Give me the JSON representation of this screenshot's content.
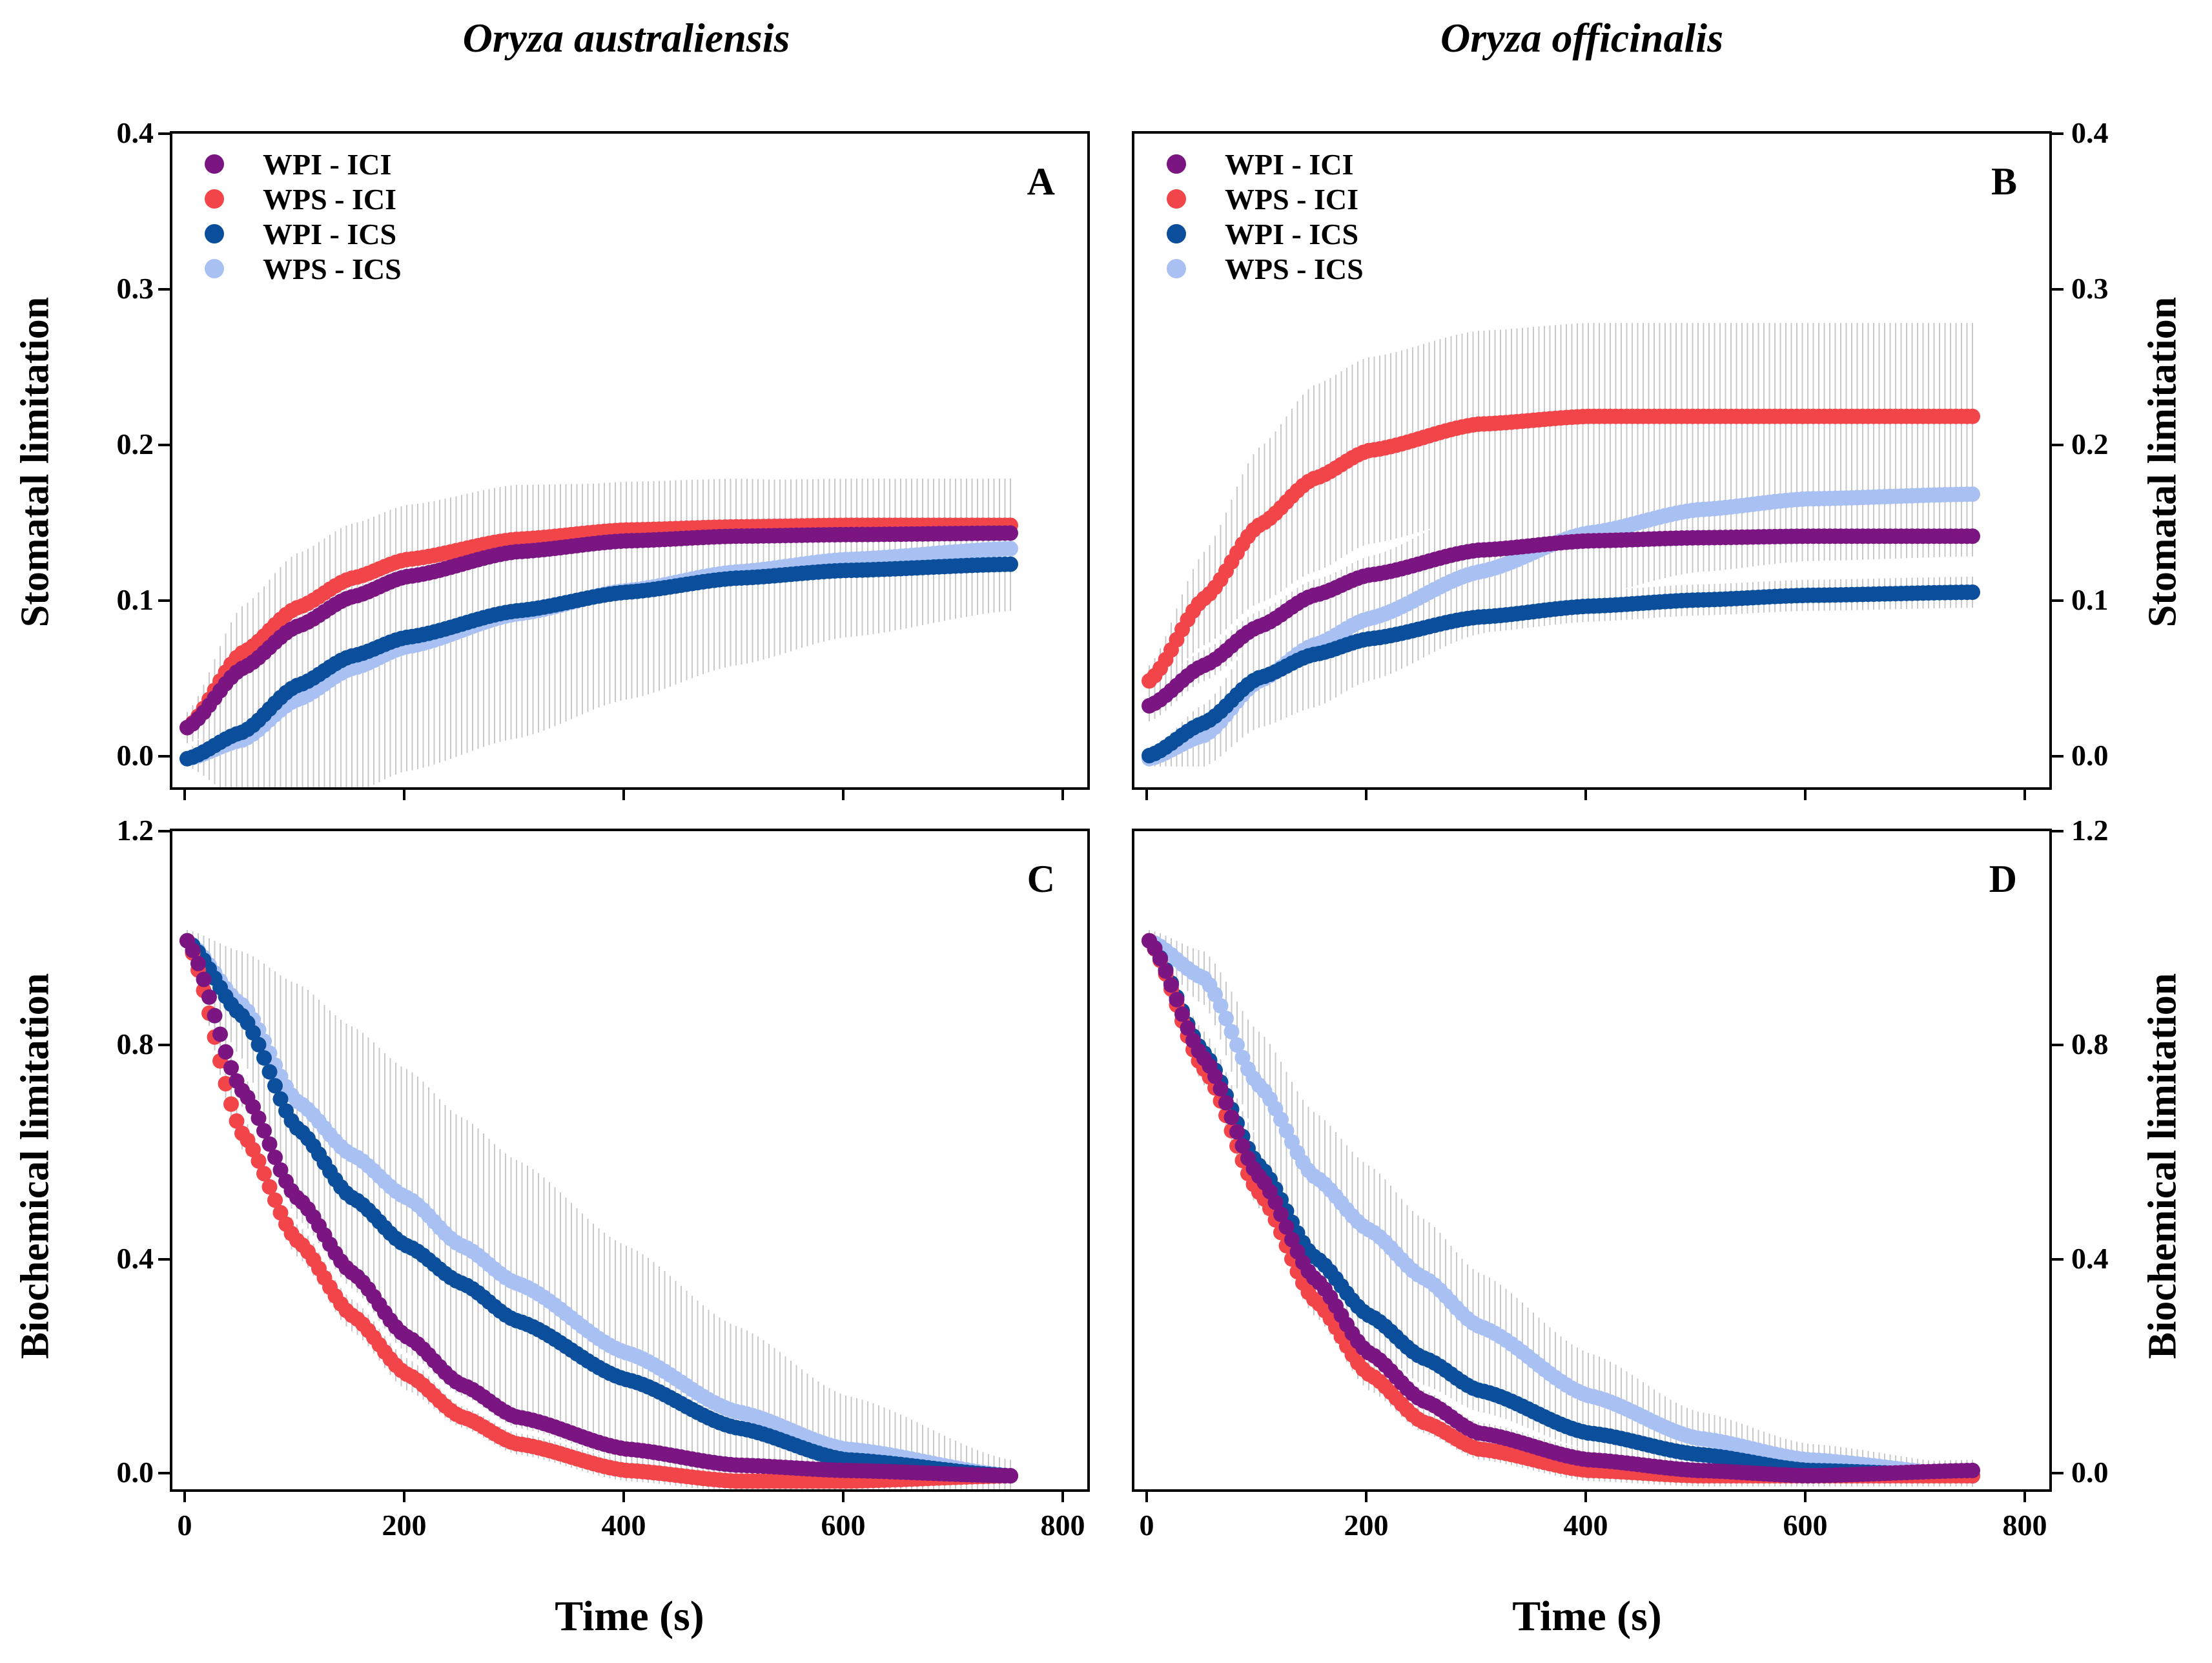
{
  "column_titles": [
    "Oryza australiensis",
    "Oryza officinalis"
  ],
  "axis_labels": {
    "stomatal": "Stomatal limitation",
    "biochemical": "Biochemical limitation",
    "time": "Time (s)"
  },
  "colors": {
    "WPI - ICI": "#7b1582",
    "WPS - ICI": "#f2454a",
    "WPI - ICS": "#0b4f9c",
    "WPS - ICS": "#a9c1f2",
    "error_bar": "#c8c8c8"
  },
  "chart_data": [
    {
      "id": "A",
      "type": "scatter",
      "title": "A",
      "xlabel": "Time (s)",
      "ylabel": "Stomatal limitation",
      "xlim": [
        0,
        830
      ],
      "ylim": [
        -0.02,
        0.4
      ],
      "xticks": [
        "0",
        "200",
        "400",
        "600",
        "800"
      ],
      "yticks": [
        "0.0",
        "0.1",
        "0.2",
        "0.3",
        "0.4"
      ],
      "ytick_values": [
        0,
        0.1,
        0.2,
        0.3,
        0.4
      ],
      "legend": [
        "WPI - ICI",
        "WPS - ICI",
        "WPI - ICS",
        "WPS - ICS"
      ],
      "series": [
        {
          "name": "WPI - ICI",
          "x": [
            0,
            50,
            100,
            150,
            200,
            300,
            400,
            500,
            600,
            750
          ],
          "y": [
            0.02,
            0.058,
            0.085,
            0.104,
            0.117,
            0.133,
            0.14,
            0.143,
            0.144,
            0.145
          ],
          "err": [
            0.01,
            0.03,
            0.035,
            0.035,
            0.035,
            0.035,
            0.035,
            0.035,
            0.035,
            0.035
          ]
        },
        {
          "name": "WPS - ICI",
          "x": [
            0,
            50,
            100,
            150,
            200,
            300,
            400,
            500,
            600,
            750
          ],
          "y": [
            0.02,
            0.068,
            0.097,
            0.116,
            0.128,
            0.141,
            0.147,
            0.149,
            0.15,
            0.15
          ],
          "err": [
            0.01,
            0.03,
            0.035,
            0.035,
            0.035,
            0.035,
            0.03,
            0.03,
            0.03,
            0.03
          ]
        },
        {
          "name": "WPI - ICS",
          "x": [
            0,
            50,
            100,
            150,
            200,
            300,
            400,
            500,
            600,
            750
          ],
          "y": [
            0.0,
            0.017,
            0.047,
            0.066,
            0.078,
            0.095,
            0.107,
            0.116,
            0.121,
            0.125
          ],
          "err": [
            0.005,
            0.03,
            0.05,
            0.06,
            0.06,
            0.06,
            0.05,
            0.04,
            0.03,
            0.02
          ]
        },
        {
          "name": "WPS - ICS",
          "x": [
            0,
            50,
            100,
            150,
            200,
            300,
            400,
            500,
            600,
            750
          ],
          "y": [
            0.0,
            0.012,
            0.038,
            0.058,
            0.072,
            0.093,
            0.108,
            0.12,
            0.128,
            0.135
          ],
          "err": [
            0.005,
            0.04,
            0.07,
            0.08,
            0.08,
            0.08,
            0.07,
            0.06,
            0.05,
            0.04
          ]
        }
      ]
    },
    {
      "id": "B",
      "type": "scatter",
      "title": "B",
      "xlabel": "Time (s)",
      "ylabel": "Stomatal limitation",
      "xlim": [
        0,
        830
      ],
      "ylim": [
        -0.02,
        0.4
      ],
      "xticks": [
        "0",
        "200",
        "400",
        "600",
        "800"
      ],
      "yticks": [
        "0.0",
        "0.1",
        "0.2",
        "0.3",
        "0.4"
      ],
      "ytick_values": [
        0,
        0.1,
        0.2,
        0.3,
        0.4
      ],
      "legend": [
        "WPI - ICI",
        "WPS - ICI",
        "WPI - ICS",
        "WPS - ICS"
      ],
      "series": [
        {
          "name": "WPI - ICI",
          "x": [
            0,
            50,
            100,
            150,
            200,
            300,
            400,
            500,
            600,
            750
          ],
          "y": [
            0.034,
            0.06,
            0.085,
            0.105,
            0.118,
            0.134,
            0.14,
            0.142,
            0.143,
            0.143
          ],
          "err": [
            0.01,
            0.01,
            0.01,
            0.01,
            0.01,
            0.01,
            0.01,
            0.01,
            0.01,
            0.01
          ]
        },
        {
          "name": "WPS - ICI",
          "x": [
            0,
            50,
            100,
            150,
            200,
            300,
            400,
            500,
            600,
            750
          ],
          "y": [
            0.05,
            0.103,
            0.15,
            0.18,
            0.198,
            0.215,
            0.22,
            0.22,
            0.22,
            0.22
          ],
          "err": [
            0.01,
            0.03,
            0.05,
            0.06,
            0.06,
            0.06,
            0.06,
            0.06,
            0.06,
            0.06
          ]
        },
        {
          "name": "WPI - ICS",
          "x": [
            0,
            50,
            100,
            150,
            200,
            300,
            400,
            500,
            600,
            750
          ],
          "y": [
            0.002,
            0.023,
            0.052,
            0.067,
            0.077,
            0.091,
            0.098,
            0.102,
            0.105,
            0.107
          ],
          "err": [
            0.005,
            0.01,
            0.01,
            0.01,
            0.01,
            0.01,
            0.01,
            0.01,
            0.01,
            0.01
          ]
        },
        {
          "name": "WPS - ICS",
          "x": [
            0,
            50,
            100,
            150,
            200,
            300,
            400,
            500,
            600,
            750
          ],
          "y": [
            0.0,
            0.015,
            0.05,
            0.073,
            0.09,
            0.12,
            0.145,
            0.16,
            0.167,
            0.17
          ],
          "err": [
            0.005,
            0.02,
            0.03,
            0.04,
            0.04,
            0.04,
            0.04,
            0.04,
            0.04,
            0.04
          ]
        }
      ]
    },
    {
      "id": "C",
      "type": "scatter",
      "title": "C",
      "xlabel": "Time (s)",
      "ylabel": "Biochemical limitation",
      "xlim": [
        0,
        830
      ],
      "ylim": [
        -0.03,
        1.2
      ],
      "xticks": [
        "0",
        "200",
        "400",
        "600",
        "800"
      ],
      "yticks": [
        "0.0",
        "0.4",
        "0.8",
        "1.2"
      ],
      "ytick_values": [
        0,
        0.4,
        0.8,
        1.2
      ],
      "legend": [],
      "series": [
        {
          "name": "WPI - ICI",
          "x": [
            0,
            50,
            100,
            150,
            200,
            250,
            300,
            400,
            500,
            600,
            750
          ],
          "y": [
            1.0,
            0.72,
            0.52,
            0.38,
            0.26,
            0.17,
            0.11,
            0.05,
            0.02,
            0.01,
            0.0
          ],
          "err": [
            0.02,
            0.03,
            0.03,
            0.03,
            0.03,
            0.02,
            0.02,
            0.02,
            0.02,
            0.02,
            0.02
          ]
        },
        {
          "name": "WPS - ICI",
          "x": [
            0,
            50,
            100,
            150,
            200,
            250,
            300,
            400,
            500,
            600,
            750
          ],
          "y": [
            1.0,
            0.64,
            0.44,
            0.3,
            0.19,
            0.11,
            0.06,
            0.01,
            -0.01,
            -0.01,
            0.0
          ],
          "err": [
            0.02,
            0.03,
            0.03,
            0.03,
            0.03,
            0.02,
            0.02,
            0.02,
            0.02,
            0.02,
            0.02
          ]
        },
        {
          "name": "WPI - ICS",
          "x": [
            0,
            50,
            100,
            150,
            200,
            250,
            300,
            400,
            500,
            600,
            750
          ],
          "y": [
            1.0,
            0.86,
            0.65,
            0.52,
            0.43,
            0.36,
            0.29,
            0.18,
            0.09,
            0.03,
            0.0
          ],
          "err": [
            0.02,
            0.08,
            0.12,
            0.15,
            0.16,
            0.16,
            0.15,
            0.12,
            0.09,
            0.06,
            0.02
          ]
        },
        {
          "name": "WPS - ICS",
          "x": [
            0,
            50,
            100,
            150,
            200,
            250,
            300,
            400,
            500,
            600,
            750
          ],
          "y": [
            1.0,
            0.88,
            0.7,
            0.6,
            0.52,
            0.43,
            0.36,
            0.23,
            0.12,
            0.05,
            0.0
          ],
          "err": [
            0.02,
            0.1,
            0.22,
            0.24,
            0.24,
            0.24,
            0.23,
            0.2,
            0.16,
            0.1,
            0.03
          ]
        }
      ]
    },
    {
      "id": "D",
      "type": "scatter",
      "title": "D",
      "xlabel": "Time (s)",
      "ylabel": "Biochemical limitation",
      "xlim": [
        0,
        830
      ],
      "ylim": [
        -0.03,
        1.2
      ],
      "xticks": [
        "0",
        "200",
        "400",
        "600",
        "800"
      ],
      "yticks": [
        "0.0",
        "0.4",
        "0.8",
        "1.2"
      ],
      "ytick_values": [
        0,
        0.4,
        0.8,
        1.2
      ],
      "legend": [],
      "series": [
        {
          "name": "WPI - ICI",
          "x": [
            0,
            50,
            100,
            150,
            200,
            250,
            300,
            400,
            500,
            600,
            750
          ],
          "y": [
            1.0,
            0.78,
            0.56,
            0.37,
            0.23,
            0.14,
            0.08,
            0.03,
            0.01,
            0.0,
            0.01
          ],
          "err": [
            0.02,
            0.03,
            0.03,
            0.03,
            0.03,
            0.02,
            0.02,
            0.02,
            0.02,
            0.02,
            0.02
          ]
        },
        {
          "name": "WPS - ICI",
          "x": [
            0,
            50,
            100,
            150,
            200,
            250,
            300,
            400,
            500,
            600,
            750
          ],
          "y": [
            1.0,
            0.76,
            0.53,
            0.33,
            0.19,
            0.1,
            0.05,
            0.01,
            0.0,
            0.0,
            0.0
          ],
          "err": [
            0.02,
            0.03,
            0.03,
            0.03,
            0.03,
            0.02,
            0.02,
            0.02,
            0.02,
            0.02,
            0.02
          ]
        },
        {
          "name": "WPI - ICS",
          "x": [
            0,
            50,
            100,
            150,
            200,
            250,
            300,
            400,
            500,
            600,
            750
          ],
          "y": [
            1.0,
            0.79,
            0.58,
            0.41,
            0.3,
            0.22,
            0.16,
            0.08,
            0.04,
            0.01,
            0.0
          ],
          "err": [
            0.02,
            0.04,
            0.05,
            0.05,
            0.05,
            0.05,
            0.04,
            0.03,
            0.02,
            0.02,
            0.02
          ]
        },
        {
          "name": "WPS - ICS",
          "x": [
            0,
            50,
            100,
            150,
            200,
            250,
            300,
            400,
            500,
            600,
            750
          ],
          "y": [
            1.0,
            0.93,
            0.73,
            0.56,
            0.46,
            0.37,
            0.28,
            0.15,
            0.07,
            0.03,
            0.0
          ],
          "err": [
            0.02,
            0.05,
            0.1,
            0.12,
            0.12,
            0.11,
            0.1,
            0.08,
            0.05,
            0.03,
            0.02
          ]
        }
      ]
    }
  ]
}
